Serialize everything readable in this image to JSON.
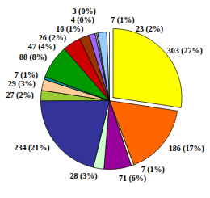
{
  "chart_data": {
    "type": "pie",
    "values": [
      303,
      186,
      7,
      71,
      28,
      234,
      27,
      29,
      7,
      88,
      47,
      26,
      16,
      4,
      3,
      23,
      7
    ],
    "value_labels": [
      "303 (27%)",
      "186 (17%)",
      "7 (1%)",
      "71 (6%)",
      "28 (3%)",
      "234 (21%)",
      "27 (2%)",
      "29 (3%)",
      "7 (1%)",
      "88 (8%)",
      "47 (4%)",
      "26 (2%)",
      "16 (1%)",
      "4 (0%)",
      "3 (0%)",
      "23 (2%)",
      "7 (1%)"
    ],
    "colors": [
      "#ffff00",
      "#ff6600",
      "#ffffcc",
      "#990099",
      "#ccffcc",
      "#333399",
      "#99cc33",
      "#ffcc99",
      "#009999",
      "#009900",
      "#cc0000",
      "#993300",
      "#9966ff",
      "#ccccff",
      "#ffffff",
      "#99ccff",
      "#ffffff"
    ],
    "data_labels": true
  }
}
